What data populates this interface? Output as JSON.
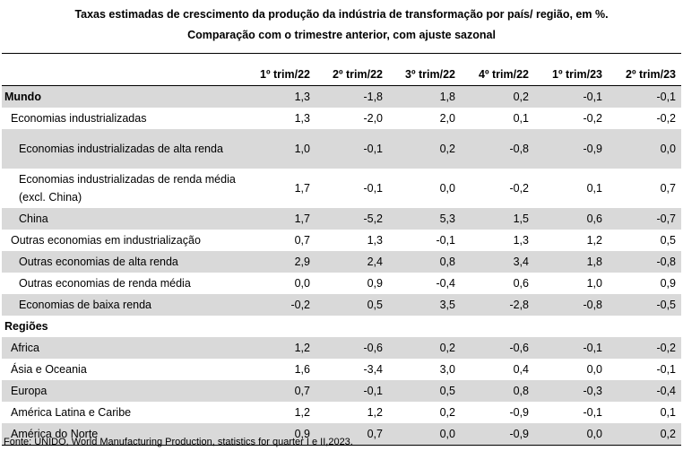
{
  "title": {
    "line1": "Taxas estimadas de crescimento da produção da indústria de transformação por país/ região, em %.",
    "line2": "Comparação com o trimestre anterior, com ajuste sazonal"
  },
  "table": {
    "columns": [
      "",
      "1º trim/22",
      "2º trim/22",
      "3º trim/22",
      "4º trim/22",
      "1º trim/23",
      "2º trim/23"
    ],
    "rows": [
      {
        "label": "Mundo",
        "values": [
          "1,3",
          "-1,8",
          "1,8",
          "0,2",
          "-0,1",
          "-0,1"
        ]
      },
      {
        "label": "Economias industrializadas",
        "values": [
          "1,3",
          "-2,0",
          "2,0",
          "0,1",
          "-0,2",
          "-0,2"
        ]
      },
      {
        "label": "Economias industrializadas de alta renda",
        "values": [
          "1,0",
          "-0,1",
          "0,2",
          "-0,8",
          "-0,9",
          "0,0"
        ]
      },
      {
        "label": "Economias industrializadas de renda média (excl. China)",
        "values": [
          "1,7",
          "-0,1",
          "0,0",
          "-0,2",
          "0,1",
          "0,7"
        ]
      },
      {
        "label": "China",
        "values": [
          "1,7",
          "-5,2",
          "5,3",
          "1,5",
          "0,6",
          "-0,7"
        ]
      },
      {
        "label": "Outras economias em industrialização",
        "values": [
          "0,7",
          "1,3",
          "-0,1",
          "1,3",
          "1,2",
          "0,5"
        ]
      },
      {
        "label": "Outras economias de alta renda",
        "values": [
          "2,9",
          "2,4",
          "0,8",
          "3,4",
          "1,8",
          "-0,8"
        ]
      },
      {
        "label": "Outras economias de renda média",
        "values": [
          "0,0",
          "0,9",
          "-0,4",
          "0,6",
          "1,0",
          "0,9"
        ]
      },
      {
        "label": "Economias de baixa renda",
        "values": [
          "-0,2",
          "0,5",
          "3,5",
          "-2,8",
          "-0,8",
          "-0,5"
        ]
      },
      {
        "label": "Regiões",
        "values": [
          "",
          "",
          "",
          "",
          "",
          ""
        ]
      },
      {
        "label": "Africa",
        "values": [
          "1,2",
          "-0,6",
          "0,2",
          "-0,6",
          "-0,1",
          "-0,2"
        ]
      },
      {
        "label": "Ásia e Oceania",
        "values": [
          "1,6",
          "-3,4",
          "3,0",
          "0,4",
          "0,0",
          "-0,1"
        ]
      },
      {
        "label": "Europa",
        "values": [
          "0,7",
          "-0,1",
          "0,5",
          "0,8",
          "-0,3",
          "-0,4"
        ]
      },
      {
        "label": "América Latina e Caribe",
        "values": [
          "1,2",
          "1,2",
          "0,2",
          "-0,9",
          "-0,1",
          "0,1"
        ]
      },
      {
        "label": "América do Norte",
        "values": [
          "0,9",
          "0,7",
          "0,0",
          "-0,9",
          "0,0",
          "0,2"
        ]
      }
    ]
  },
  "source": "Fonte: UNIDO, World Manufacturing Production, statistics for quarter I e II,2023."
}
